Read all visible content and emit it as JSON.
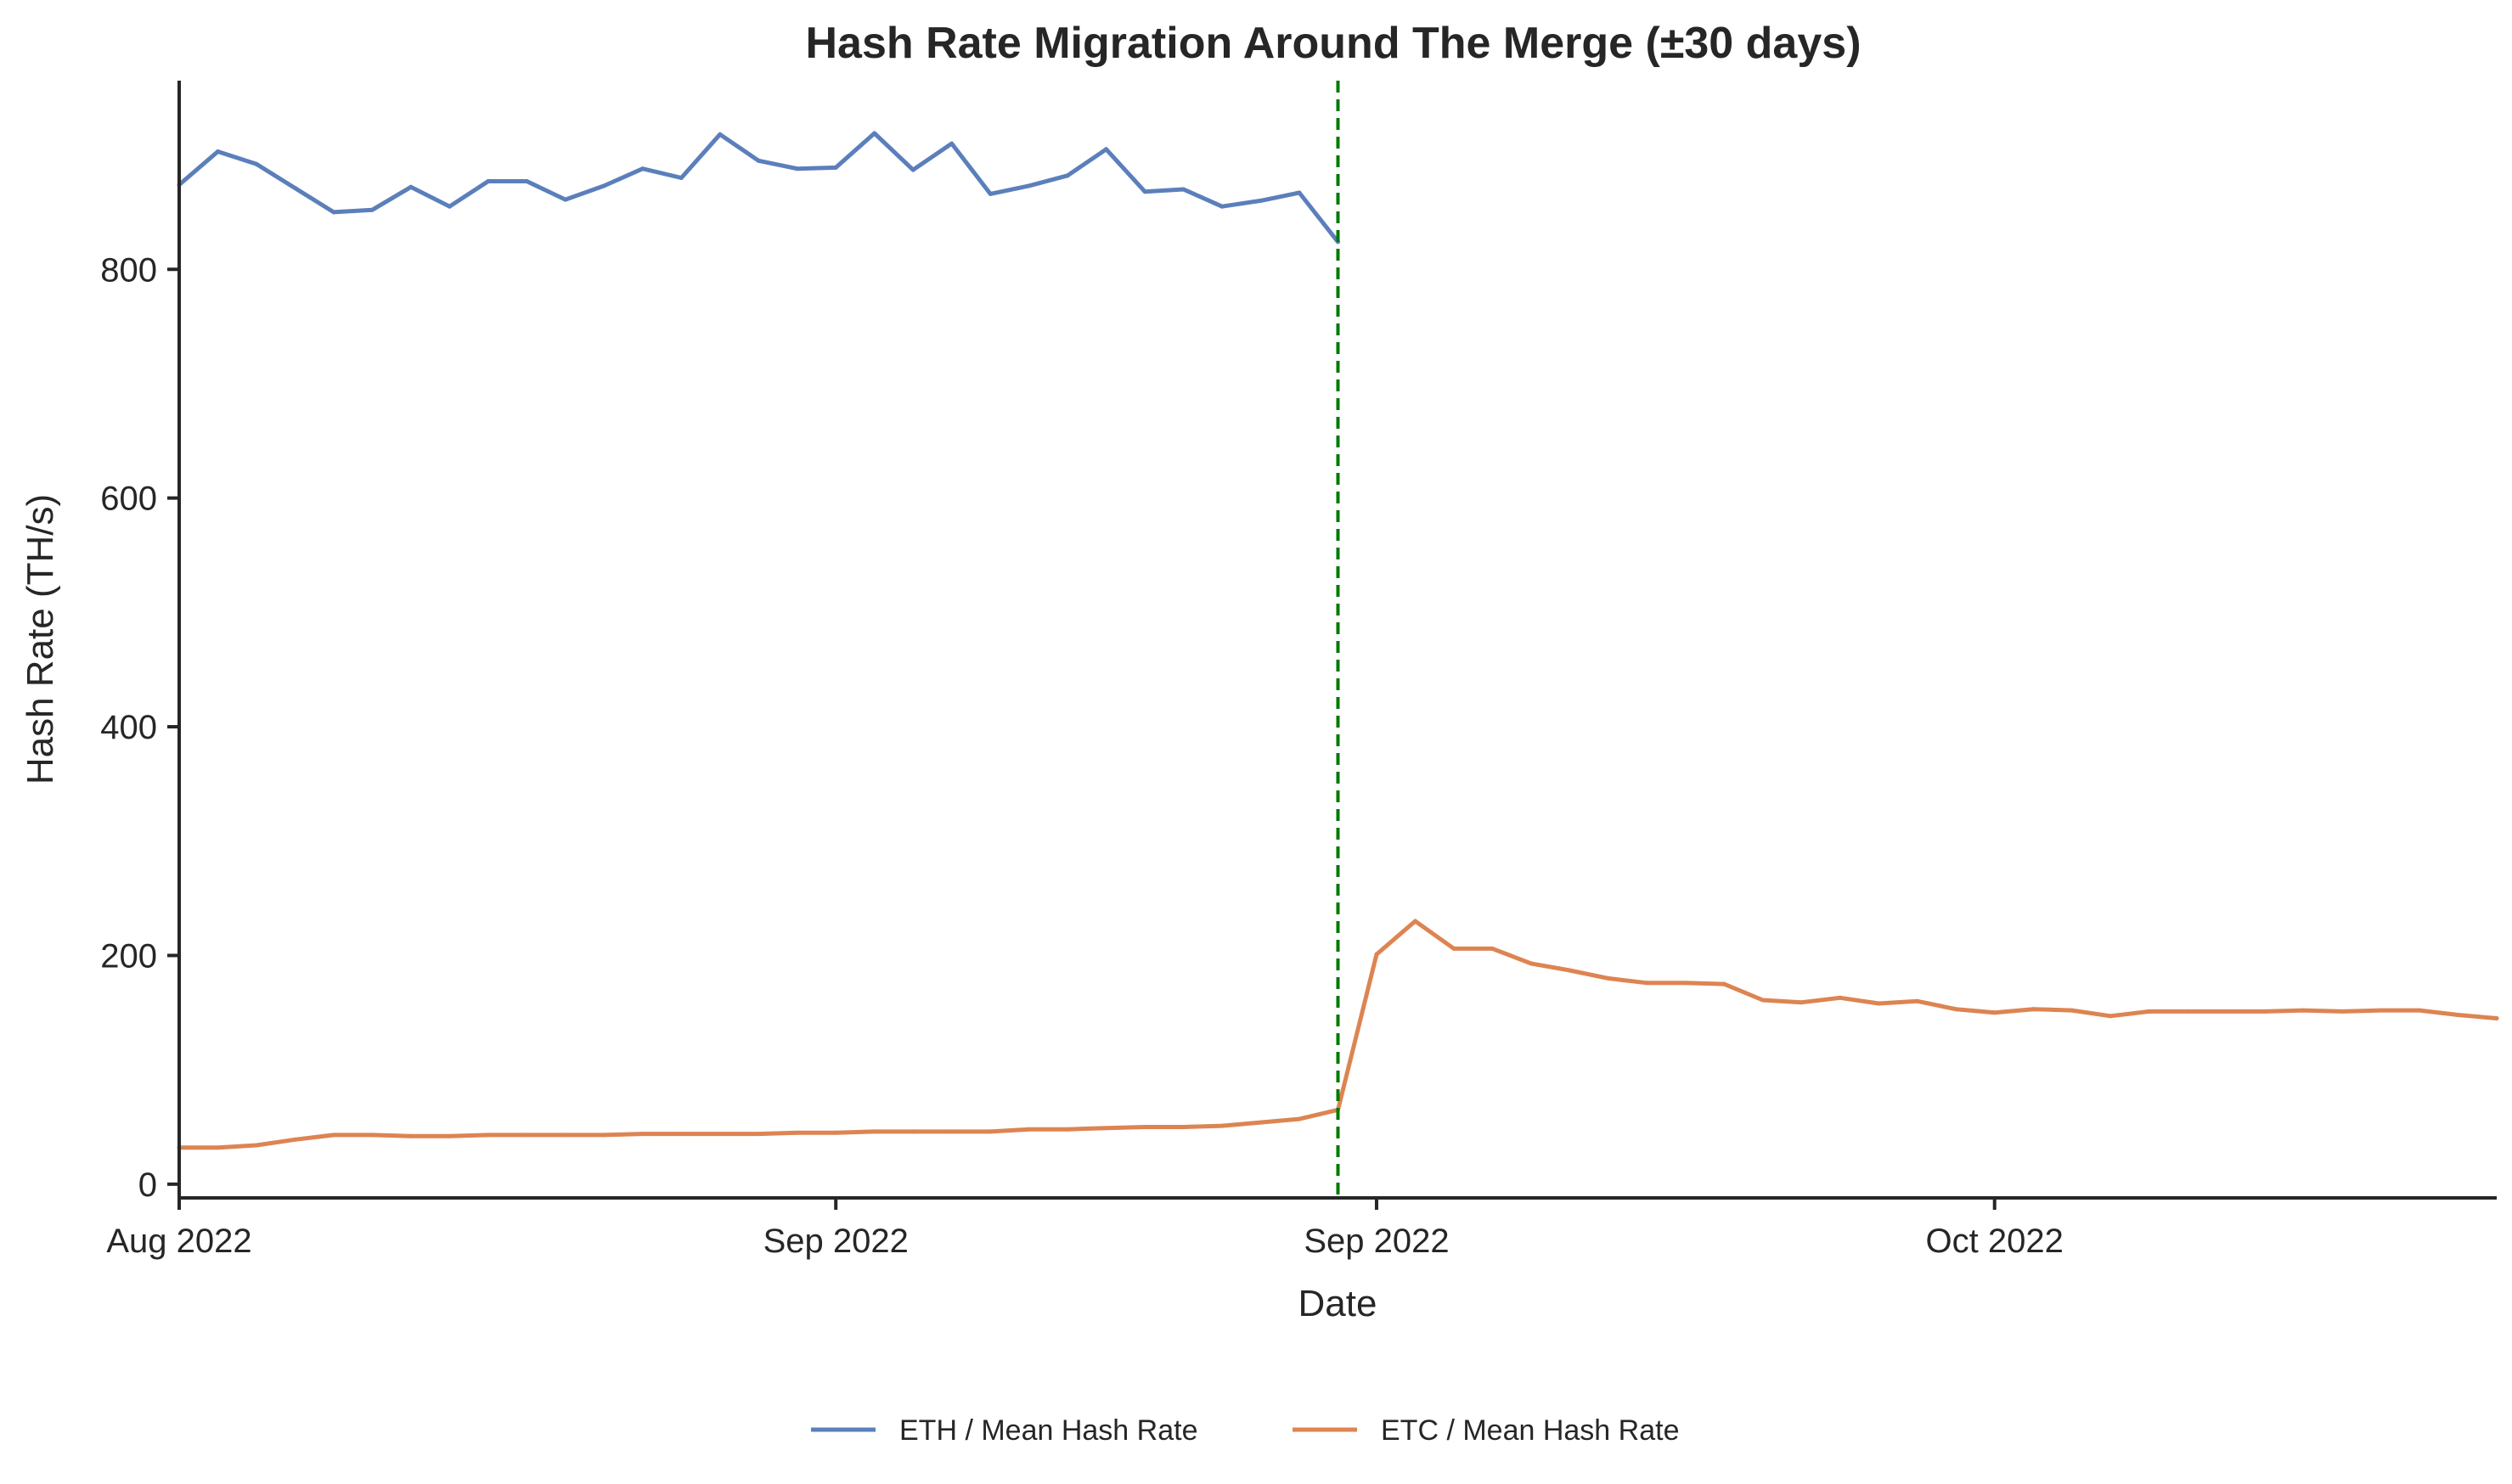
{
  "chart_data": {
    "type": "line",
    "title": "Hash Rate Migration Around The Merge (±30 days)",
    "xlabel": "Date",
    "ylabel": "Hash Rate (TH/s)",
    "ylim": [
      -12,
      965
    ],
    "yticks": [
      0,
      200,
      400,
      600,
      800
    ],
    "xticks": [
      {
        "x": 0,
        "label": "Aug 2022"
      },
      {
        "x": 17,
        "label": "Sep 2022"
      },
      {
        "x": 31,
        "label": "Sep 2022"
      },
      {
        "x": 47,
        "label": "Oct 2022"
      }
    ],
    "xlim": [
      0,
      60
    ],
    "merge_x": 30,
    "merge_line_color": "#007a00",
    "legend_position": "bottom-center",
    "grid": false,
    "series": [
      {
        "name": "ETH / Mean Hash Rate",
        "color": "#5b7fbb",
        "x": [
          0,
          1,
          2,
          3,
          4,
          5,
          6,
          7,
          8,
          9,
          10,
          11,
          12,
          13,
          14,
          15,
          16,
          17,
          18,
          19,
          20,
          21,
          22,
          23,
          24,
          25,
          26,
          27,
          28,
          29,
          30
        ],
        "values": [
          874,
          903,
          892,
          871,
          850,
          852,
          872,
          855,
          877,
          877,
          861,
          873,
          888,
          880,
          918,
          895,
          888,
          889,
          919,
          887,
          910,
          866,
          873,
          882,
          905,
          868,
          870,
          855,
          860,
          867,
          824
        ]
      },
      {
        "name": "ETC / Mean Hash Rate",
        "color": "#dd8452",
        "x": [
          0,
          1,
          2,
          3,
          4,
          5,
          6,
          7,
          8,
          9,
          10,
          11,
          12,
          13,
          14,
          15,
          16,
          17,
          18,
          19,
          20,
          21,
          22,
          23,
          24,
          25,
          26,
          27,
          28,
          29,
          30,
          31,
          32,
          33,
          34,
          35,
          36,
          37,
          38,
          39,
          40,
          41,
          42,
          43,
          44,
          45,
          46,
          47,
          48,
          49,
          50,
          51,
          52,
          53,
          54,
          55,
          56,
          57,
          58,
          59,
          60
        ],
        "values": [
          32,
          32,
          34,
          39,
          43,
          43,
          42,
          42,
          43,
          43,
          43,
          43,
          44,
          44,
          44,
          44,
          45,
          45,
          46,
          46,
          46,
          46,
          48,
          48,
          49,
          50,
          50,
          51,
          54,
          57,
          65,
          201,
          230,
          206,
          206,
          193,
          187,
          180,
          176,
          176,
          175,
          161,
          159,
          163,
          158,
          160,
          153,
          150,
          153,
          152,
          147,
          151,
          151,
          151,
          151,
          152,
          151,
          152,
          152,
          148,
          145
        ]
      }
    ]
  }
}
